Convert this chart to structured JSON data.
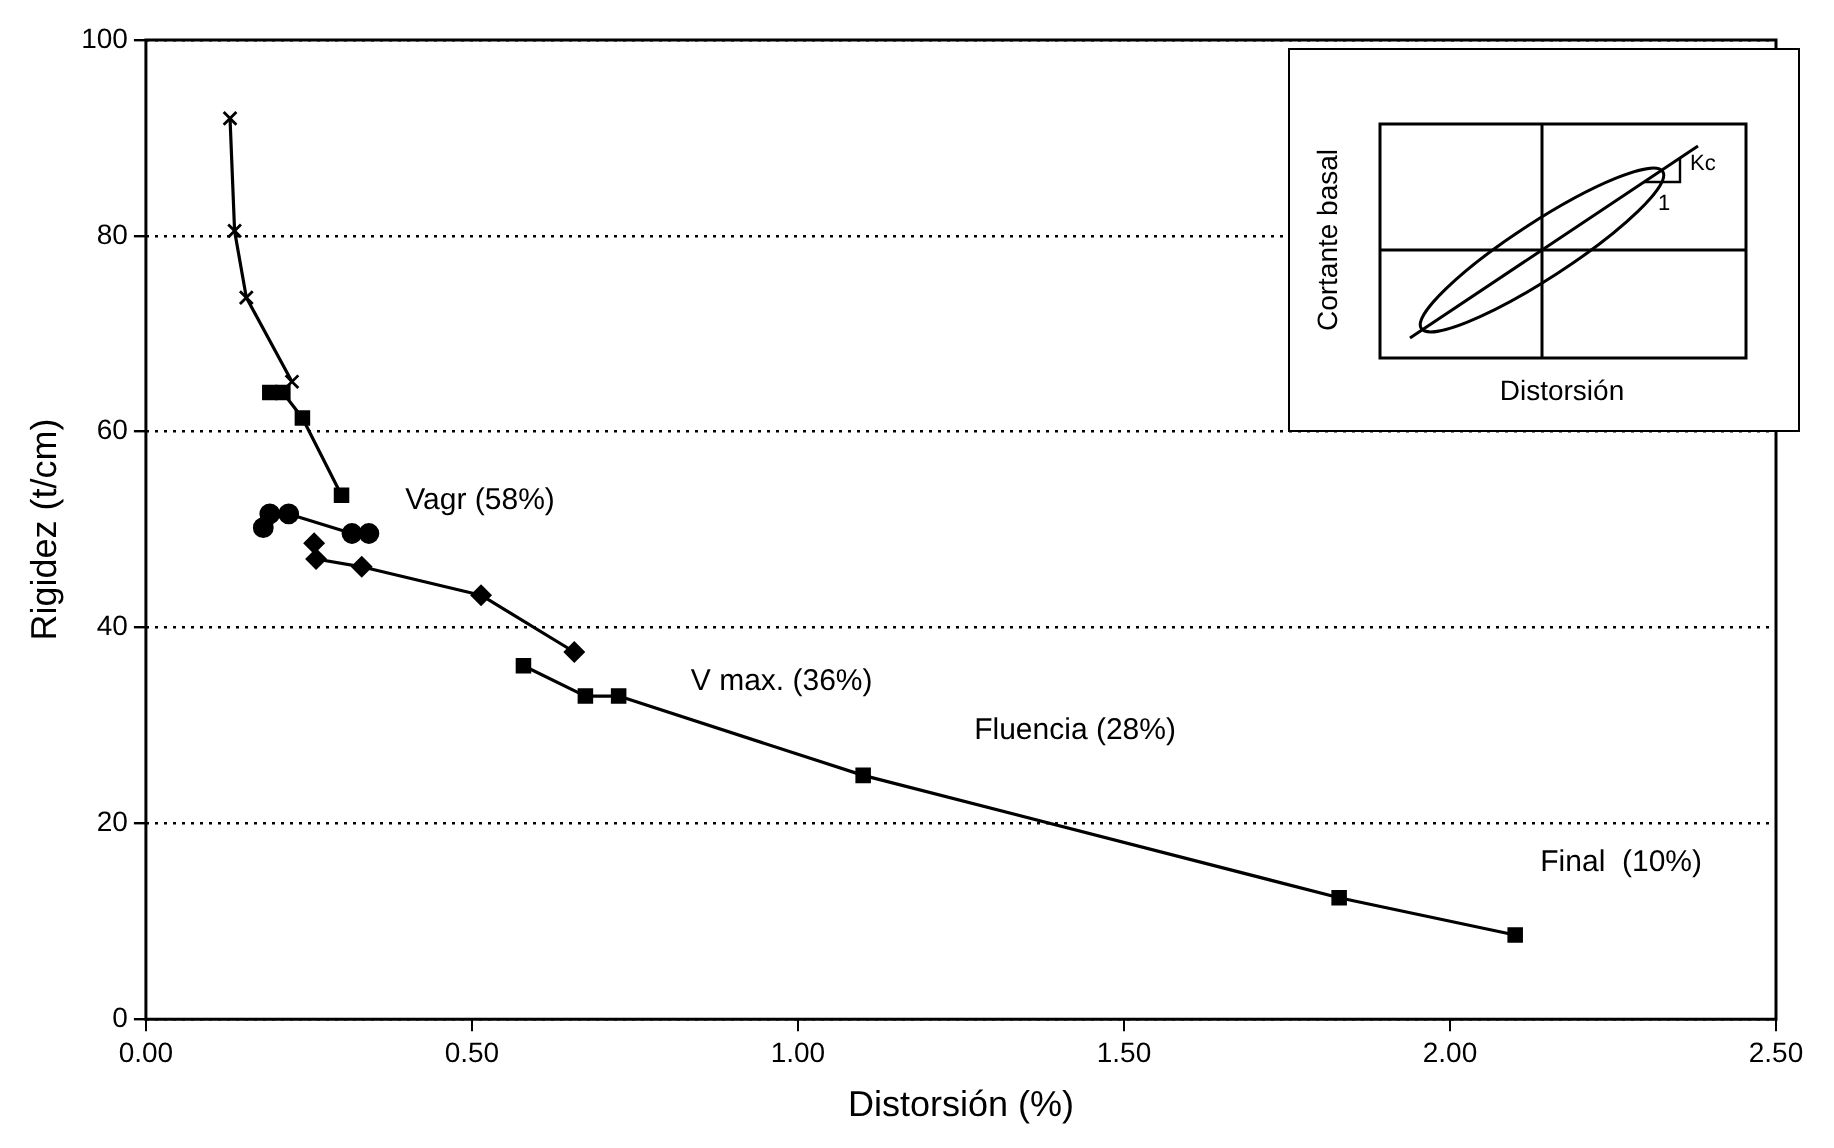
{
  "chart_data": {
    "type": "line",
    "xlabel": "Distorsión (%)",
    "ylabel": "Rigidez (t/cm)",
    "xlim": [
      0,
      2.5
    ],
    "ylim": [
      0,
      100
    ],
    "xticks": [
      {
        "value": 0,
        "label": "0.00"
      },
      {
        "value": 0.5,
        "label": "0.50"
      },
      {
        "value": 1,
        "label": "1.00"
      },
      {
        "value": 1.5,
        "label": "1.50"
      },
      {
        "value": 2,
        "label": "2.00"
      },
      {
        "value": 2.5,
        "label": "2.50"
      }
    ],
    "yticks": [
      0,
      20,
      40,
      60,
      80,
      100
    ],
    "grid": "y",
    "line_style": "solid",
    "series": [
      {
        "color": "#000000",
        "marker": "cross",
        "x": [
          0.129,
          0.136,
          0.154,
          0.224
        ],
        "values": [
          92,
          80.5,
          73.7,
          65.1
        ]
      },
      {
        "color": "#000000",
        "marker": "square",
        "x": [
          0.19,
          0.21,
          0.24,
          0.3
        ],
        "values": [
          64,
          64,
          61.4,
          53.5
        ]
      },
      {
        "color": "#000000",
        "marker": "circle",
        "x": [
          0.18,
          0.19,
          0.219,
          0.316,
          0.342
        ],
        "values": [
          50.2,
          51.6,
          51.6,
          49.6,
          49.6
        ]
      },
      {
        "color": "#000000",
        "marker": "diamond",
        "x": [
          0.258,
          0.261,
          0.331,
          0.514,
          0.657
        ],
        "values": [
          48.6,
          47,
          46.2,
          43.3,
          37.5
        ]
      },
      {
        "color": "#000000",
        "marker": "square",
        "x": [
          0.579,
          0.674,
          0.725,
          1.1,
          1.83,
          2.1
        ],
        "values": [
          36.1,
          33,
          33,
          24.9,
          12.4,
          8.6
        ]
      }
    ],
    "annotations": [
      "Vagr (58%)",
      "V max. (36%)",
      "Fluencia (28%)",
      "Final  (10%)",
      "Cortante basal",
      "Distorsión",
      "Kc",
      "1"
    ]
  }
}
